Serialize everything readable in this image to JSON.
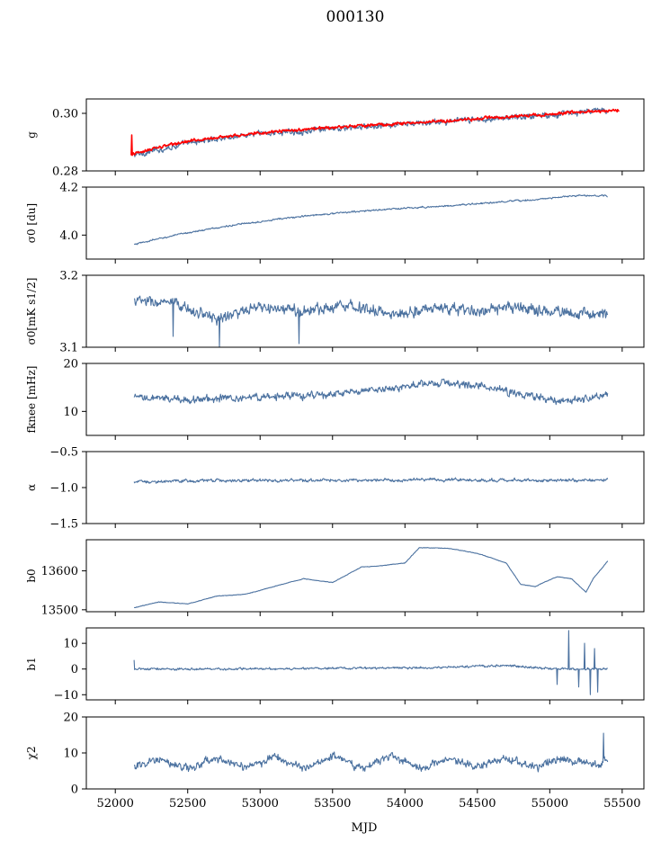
{
  "figure": {
    "title": "000130",
    "xlabel": "MJD",
    "colors": {
      "series": "#4c72a0",
      "model": "#ff0000"
    }
  },
  "chart_data": [
    {
      "type": "line",
      "panel": "g",
      "ylabel": "g",
      "xlim": [
        51800,
        55650
      ],
      "ylim": [
        0.28,
        0.305
      ],
      "yticks": [
        {
          "v": 0.28,
          "label": "0.28"
        },
        {
          "v": 0.3,
          "label": "0.30"
        }
      ],
      "series": [
        {
          "role": "data",
          "color": "#4c72a0",
          "noise": 0.0012,
          "spikes": [],
          "x": [
            52120,
            52200,
            52400,
            52600,
            52800,
            53000,
            53200,
            53500,
            53800,
            54100,
            54400,
            54700,
            55000,
            55200,
            55400
          ],
          "y": [
            0.2855,
            0.2862,
            0.2885,
            0.2905,
            0.2918,
            0.293,
            0.2935,
            0.2945,
            0.2955,
            0.2965,
            0.2975,
            0.2985,
            0.2995,
            0.3003,
            0.3012
          ]
        },
        {
          "role": "model",
          "color": "#ff0000",
          "noise": 0.0006,
          "spikes": [
            [
              52115,
              0.2925
            ]
          ],
          "x": [
            52110,
            52200,
            52400,
            52600,
            52800,
            53000,
            53200,
            53500,
            53800,
            54100,
            54400,
            54700,
            55000,
            55200,
            55480
          ],
          "y": [
            0.2855,
            0.287,
            0.2893,
            0.291,
            0.2922,
            0.2932,
            0.294,
            0.295,
            0.296,
            0.2968,
            0.2978,
            0.2988,
            0.2997,
            0.3005,
            0.301
          ]
        }
      ]
    },
    {
      "type": "line",
      "panel": "sigma0_du",
      "ylabel": "σ0 [du]",
      "xlim": [
        51800,
        55650
      ],
      "ylim": [
        3.9,
        4.2
      ],
      "yticks": [
        {
          "v": 4.0,
          "label": "4.0"
        },
        {
          "v": 4.2,
          "label": "4.2"
        }
      ],
      "series": [
        {
          "role": "data",
          "color": "#4c72a0",
          "noise": 0.004,
          "spikes": [],
          "x": [
            52130,
            52300,
            52500,
            52800,
            53100,
            53400,
            53700,
            54000,
            54300,
            54600,
            54900,
            55200,
            55400
          ],
          "y": [
            3.96,
            3.985,
            4.01,
            4.04,
            4.065,
            4.085,
            4.1,
            4.112,
            4.122,
            4.135,
            4.148,
            4.165,
            4.163
          ]
        }
      ]
    },
    {
      "type": "line",
      "panel": "sigma0_mk",
      "ylabel": "σ0[mK s1/2]",
      "xlim": [
        51800,
        55650
      ],
      "ylim": [
        3.1,
        3.2
      ],
      "yticks": [
        {
          "v": 3.1,
          "label": "3.1"
        },
        {
          "v": 3.2,
          "label": "3.2"
        }
      ],
      "series": [
        {
          "role": "data",
          "color": "#4c72a0",
          "noise": 0.009,
          "spikes": [
            [
              52720,
              3.1
            ],
            [
              53270,
              3.105
            ],
            [
              52400,
              3.115
            ]
          ],
          "x": [
            52130,
            52400,
            52700,
            53000,
            53300,
            53600,
            53900,
            54200,
            54500,
            54800,
            55100,
            55400
          ],
          "y": [
            3.165,
            3.16,
            3.14,
            3.155,
            3.15,
            3.16,
            3.145,
            3.155,
            3.15,
            3.155,
            3.148,
            3.145
          ]
        }
      ]
    },
    {
      "type": "line",
      "panel": "fknee",
      "ylabel": "fknee [mHz]",
      "xlim": [
        51800,
        55650
      ],
      "ylim": [
        5,
        20
      ],
      "yticks": [
        {
          "v": 10,
          "label": "10"
        },
        {
          "v": 20,
          "label": "20"
        }
      ],
      "series": [
        {
          "role": "data",
          "color": "#4c72a0",
          "noise": 0.9,
          "spikes": [],
          "x": [
            52130,
            52500,
            53000,
            53500,
            53800,
            54100,
            54300,
            54600,
            54800,
            55000,
            55200,
            55400
          ],
          "y": [
            12.8,
            12.5,
            13,
            13.5,
            14.5,
            15.5,
            16,
            15,
            13.5,
            12.5,
            12.5,
            13.5
          ]
        }
      ]
    },
    {
      "type": "line",
      "panel": "alpha",
      "ylabel": "α",
      "xlim": [
        51800,
        55650
      ],
      "ylim": [
        -1.5,
        -0.5
      ],
      "yticks": [
        {
          "v": -1.5,
          "label": "−1.5"
        },
        {
          "v": -1.0,
          "label": "−1.0"
        },
        {
          "v": -0.5,
          "label": "−0.5"
        }
      ],
      "series": [
        {
          "role": "data",
          "color": "#4c72a0",
          "noise": 0.025,
          "spikes": [],
          "x": [
            52130,
            52800,
            53500,
            54200,
            54900,
            55400
          ],
          "y": [
            -0.92,
            -0.9,
            -0.9,
            -0.89,
            -0.9,
            -0.89
          ]
        }
      ]
    },
    {
      "type": "line",
      "panel": "b0",
      "ylabel": "b0",
      "xlim": [
        51800,
        55650
      ],
      "ylim": [
        13495,
        13680
      ],
      "yticks": [
        {
          "v": 13500,
          "label": "13500"
        },
        {
          "v": 13600,
          "label": "13600"
        }
      ],
      "series": [
        {
          "role": "data",
          "color": "#4c72a0",
          "noise": 0.8,
          "spikes": [],
          "x": [
            52130,
            52300,
            52500,
            52700,
            52900,
            53100,
            53300,
            53500,
            53700,
            53800,
            54000,
            54100,
            54300,
            54500,
            54700,
            54800,
            54900,
            55050,
            55150,
            55250,
            55300,
            55400
          ],
          "y": [
            13505,
            13520,
            13515,
            13535,
            13540,
            13560,
            13580,
            13570,
            13610,
            13612,
            13620,
            13660,
            13658,
            13645,
            13620,
            13565,
            13560,
            13585,
            13580,
            13545,
            13580,
            13625
          ]
        }
      ]
    },
    {
      "type": "line",
      "panel": "b1",
      "ylabel": "b1",
      "xlim": [
        51800,
        55650
      ],
      "ylim": [
        -12,
        16
      ],
      "yticks": [
        {
          "v": -10,
          "label": "−10"
        },
        {
          "v": 0,
          "label": "0"
        },
        {
          "v": 10,
          "label": "10"
        }
      ],
      "series": [
        {
          "role": "data",
          "color": "#4c72a0",
          "noise": 0.5,
          "spikes": [
            [
              52130,
              3.5
            ],
            [
              55130,
              15
            ],
            [
              55240,
              10
            ],
            [
              55280,
              -10
            ],
            [
              55310,
              8
            ],
            [
              55330,
              -9
            ],
            [
              55050,
              -6
            ],
            [
              55200,
              -7
            ]
          ],
          "x": [
            52130,
            52800,
            53500,
            54200,
            54700,
            54900,
            55100,
            55400
          ],
          "y": [
            0,
            0,
            0.3,
            0.5,
            1.5,
            0.5,
            0,
            0
          ]
        }
      ]
    },
    {
      "type": "line",
      "panel": "chi2",
      "ylabel": "χ2",
      "xlim": [
        51800,
        55650
      ],
      "ylim": [
        0,
        20
      ],
      "yticks": [
        {
          "v": 0,
          "label": "0"
        },
        {
          "v": 10,
          "label": "10"
        },
        {
          "v": 20,
          "label": "20"
        }
      ],
      "xticks": [
        {
          "v": 52000,
          "label": "52000"
        },
        {
          "v": 52500,
          "label": "52500"
        },
        {
          "v": 53000,
          "label": "53000"
        },
        {
          "v": 53500,
          "label": "53500"
        },
        {
          "v": 54000,
          "label": "54000"
        },
        {
          "v": 54500,
          "label": "54500"
        },
        {
          "v": 55000,
          "label": "55000"
        },
        {
          "v": 55500,
          "label": "55500"
        }
      ],
      "series": [
        {
          "role": "data",
          "color": "#4c72a0",
          "noise": 1.3,
          "spikes": [
            [
              55370,
              15.5
            ]
          ],
          "x": [
            52130,
            52300,
            52500,
            52700,
            52900,
            53100,
            53300,
            53500,
            53700,
            53900,
            54100,
            54300,
            54500,
            54700,
            54900,
            55100,
            55300,
            55400
          ],
          "y": [
            6,
            8.5,
            5.5,
            8.5,
            6,
            9,
            6,
            9,
            6,
            9,
            6,
            8.5,
            6,
            8.5,
            6,
            8.5,
            6.5,
            8
          ]
        }
      ]
    }
  ]
}
